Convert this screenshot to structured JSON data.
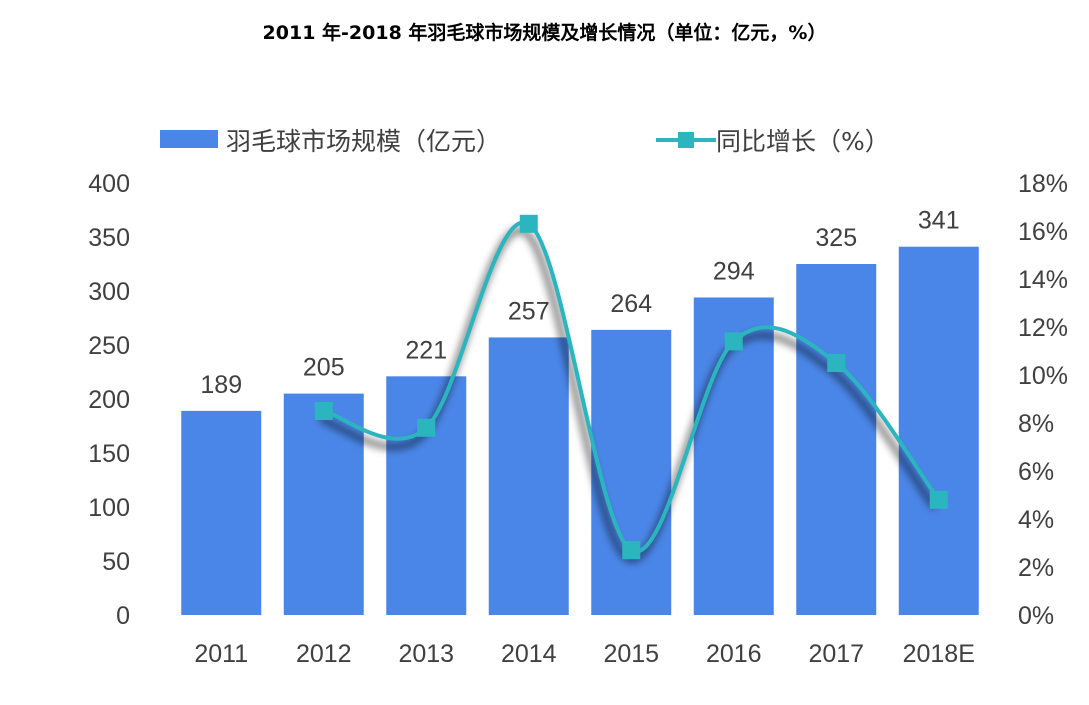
{
  "chart_data": {
    "type": "bar+line",
    "title": "2011 年-2018 年羽毛球市场规模及增长情况（单位：亿元，%）",
    "categories": [
      "2011",
      "2012",
      "2013",
      "2014",
      "2015",
      "2016",
      "2017",
      "2018E"
    ],
    "series": [
      {
        "name": "羽毛球市场规模（亿元）",
        "type": "bar",
        "axis": "left",
        "values": [
          189,
          205,
          221,
          257,
          264,
          294,
          325,
          341
        ],
        "color": "#4A86E8"
      },
      {
        "name": "同比增长（%）",
        "type": "line",
        "axis": "right",
        "values": [
          null,
          8.5,
          7.8,
          16.3,
          2.7,
          11.4,
          10.5,
          4.8
        ],
        "color": "#2BB5BE"
      }
    ],
    "y_left": {
      "min": 0,
      "max": 400,
      "ticks": [
        "0",
        "50",
        "100",
        "150",
        "200",
        "250",
        "300",
        "350",
        "400"
      ]
    },
    "y_right": {
      "min": 0,
      "max": 18,
      "ticks": [
        "0%",
        "2%",
        "4%",
        "6%",
        "8%",
        "10%",
        "12%",
        "14%",
        "16%",
        "18%"
      ]
    },
    "legend_position": "top",
    "grid": false
  }
}
